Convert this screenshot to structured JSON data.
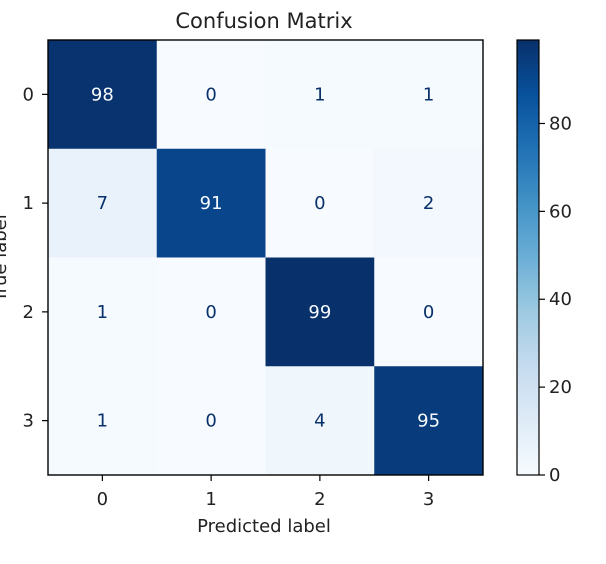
{
  "chart_data": {
    "type": "heatmap",
    "title": "Confusion Matrix",
    "xlabel": "Predicted label",
    "ylabel": "True label",
    "x_categories": [
      "0",
      "1",
      "2",
      "3"
    ],
    "y_categories": [
      "0",
      "1",
      "2",
      "3"
    ],
    "values": [
      [
        98,
        0,
        1,
        1
      ],
      [
        7,
        91,
        0,
        2
      ],
      [
        1,
        0,
        99,
        0
      ],
      [
        1,
        0,
        4,
        95
      ]
    ],
    "colorbar": {
      "ticks": [
        0,
        20,
        40,
        60,
        80
      ],
      "range": [
        0,
        99
      ]
    },
    "colormap": "Blues",
    "colors": {
      "low": "#f7fbff",
      "high": "#08306b",
      "text_on_dark": "#f7fbff",
      "text_on_light": "#08306b"
    }
  }
}
